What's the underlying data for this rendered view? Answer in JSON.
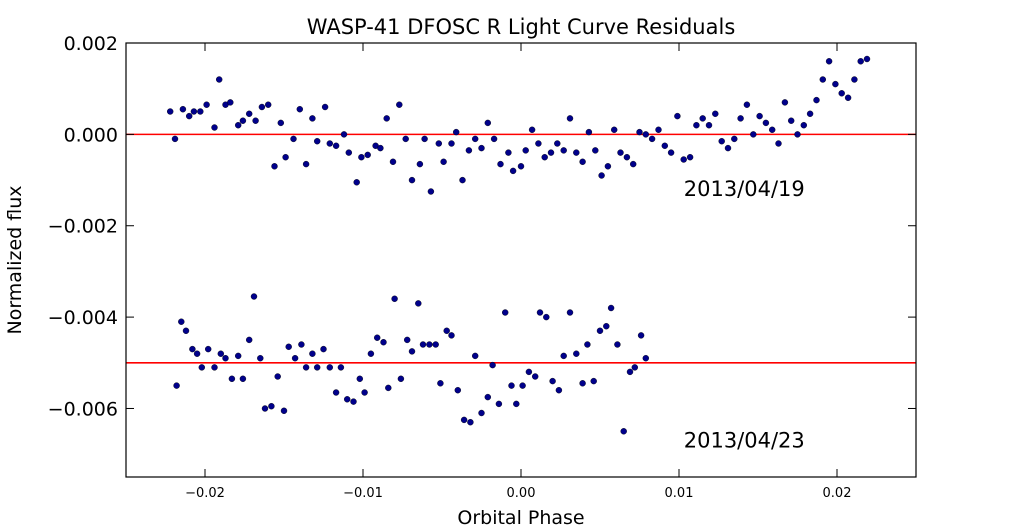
{
  "chart_data": {
    "type": "scatter",
    "title": "WASP-41 DFOSC R Light Curve Residuals",
    "xlabel": "Orbital Phase",
    "ylabel": "Normalized flux",
    "xlim": [
      -0.025,
      0.025
    ],
    "ylim": [
      -0.0075,
      0.002
    ],
    "xticks": [
      -0.02,
      -0.01,
      0.0,
      0.01,
      0.02
    ],
    "xtick_labels": [
      "−0.02",
      "−0.01",
      "0.00",
      "0.01",
      "0.02"
    ],
    "yticks": [
      0.002,
      0.0,
      -0.002,
      -0.004,
      -0.006
    ],
    "ytick_labels": [
      "0.002",
      "0.000",
      "−0.002",
      "−0.004",
      "−0.006"
    ],
    "grid": false,
    "marker_color": "#00008B",
    "line_color": "#FF0000",
    "series": [
      {
        "name": "2013/04/19",
        "label": "2013/04/19",
        "label_position": [
          0.0103,
          -0.00135
        ],
        "baseline": 0.0,
        "x": [
          -0.0222,
          -0.0219,
          -0.0214,
          -0.021,
          -0.0207,
          -0.0203,
          -0.0199,
          -0.0194,
          -0.0191,
          -0.0187,
          -0.0184,
          -0.0179,
          -0.0176,
          -0.0172,
          -0.0168,
          -0.0164,
          -0.016,
          -0.0156,
          -0.0152,
          -0.0149,
          -0.0144,
          -0.014,
          -0.0136,
          -0.0132,
          -0.0129,
          -0.0124,
          -0.0121,
          -0.0117,
          -0.0112,
          -0.0109,
          -0.0104,
          -0.0101,
          -0.0097,
          -0.0092,
          -0.0089,
          -0.0085,
          -0.0081,
          -0.0077,
          -0.0073,
          -0.0069,
          -0.0064,
          -0.0061,
          -0.0057,
          -0.0052,
          -0.0049,
          -0.0044,
          -0.0041,
          -0.0037,
          -0.0033,
          -0.0029,
          -0.0025,
          -0.0021,
          -0.0017,
          -0.0013,
          -0.0008,
          -0.0005,
          0.0,
          0.0003,
          0.0007,
          0.0011,
          0.0015,
          0.0019,
          0.0023,
          0.0027,
          0.0031,
          0.0035,
          0.0039,
          0.0043,
          0.0047,
          0.0051,
          0.0055,
          0.0059,
          0.0063,
          0.0067,
          0.0071,
          0.0075,
          0.0079,
          0.0083,
          0.0087,
          0.0091,
          0.0095,
          0.0099,
          0.0103,
          0.0107,
          0.0111,
          0.0115,
          0.0119,
          0.0123,
          0.0127,
          0.0131,
          0.0135,
          0.0139,
          0.0143,
          0.0147,
          0.0151,
          0.0155,
          0.0159,
          0.0163,
          0.0167,
          0.0171,
          0.0175,
          0.0179,
          0.0183,
          0.0187,
          0.0191,
          0.0195,
          0.0199,
          0.0203,
          0.0207,
          0.0211,
          0.0215,
          0.0219
        ],
        "y": [
          0.0005,
          -0.0001,
          0.00055,
          0.0004,
          0.0005,
          0.0005,
          0.00065,
          0.00015,
          0.0012,
          0.00065,
          0.0007,
          0.0002,
          0.0003,
          0.00045,
          0.0003,
          0.0006,
          0.00065,
          -0.0007,
          0.00025,
          -0.0005,
          -0.0001,
          0.00055,
          -0.00065,
          0.00035,
          -0.00015,
          0.0006,
          -0.0002,
          -0.00025,
          0.0,
          -0.0004,
          -0.00105,
          -0.0005,
          -0.00045,
          -0.00025,
          -0.0003,
          0.00035,
          -0.0006,
          0.00065,
          -0.0001,
          -0.001,
          -0.00065,
          -0.0001,
          -0.00125,
          -0.0002,
          -0.0006,
          -0.0002,
          5e-05,
          -0.001,
          -0.00035,
          -0.0001,
          -0.0003,
          0.00025,
          -0.0001,
          -0.00065,
          -0.0004,
          -0.0008,
          -0.0007,
          -0.00035,
          0.0001,
          -0.0002,
          -0.0005,
          -0.0004,
          -0.0002,
          -0.00035,
          0.00035,
          -0.0004,
          -0.0006,
          5e-05,
          -0.00035,
          -0.0009,
          -0.0007,
          0.0001,
          -0.0004,
          -0.0005,
          -0.00065,
          5e-05,
          0.0,
          -0.0001,
          0.0001,
          -0.00025,
          -0.0004,
          0.0004,
          -0.00055,
          -0.0005,
          0.0002,
          0.00035,
          0.0002,
          0.00045,
          -0.00015,
          -0.0003,
          -0.0001,
          0.00035,
          0.00065,
          0.0,
          0.0004,
          0.00025,
          0.0001,
          -0.0002,
          0.0007,
          0.0003,
          0.0,
          0.0002,
          0.00045,
          0.00075,
          0.0012,
          0.0016,
          0.0011,
          0.0009,
          0.0008,
          0.0012,
          0.0016,
          0.00165
        ],
        "x_used": 0
      },
      {
        "name": "2013/04/23",
        "label": "2013/04/23",
        "label_position": [
          0.0103,
          -0.00685
        ],
        "baseline": -0.005,
        "x": [
          -0.0218,
          -0.0215,
          -0.0212,
          -0.0208,
          -0.0205,
          -0.0202,
          -0.0198,
          -0.0194,
          -0.019,
          -0.0187,
          -0.0183,
          -0.0179,
          -0.0176,
          -0.0172,
          -0.0169,
          -0.0165,
          -0.0162,
          -0.0158,
          -0.0154,
          -0.015,
          -0.0147,
          -0.0143,
          -0.0139,
          -0.0136,
          -0.0132,
          -0.0129,
          -0.0125,
          -0.0121,
          -0.0117,
          -0.0114,
          -0.011,
          -0.0106,
          -0.0102,
          -0.0099,
          -0.0095,
          -0.0091,
          -0.0087,
          -0.0084,
          -0.008,
          -0.0076,
          -0.0072,
          -0.0069,
          -0.0065,
          -0.0062,
          -0.0058,
          -0.0054,
          -0.0051,
          -0.0047,
          -0.0044,
          -0.004,
          -0.0036,
          -0.0032,
          -0.0029,
          -0.0025,
          -0.0021,
          -0.0018,
          -0.0014,
          -0.001,
          -0.0006,
          -0.0003,
          0.0001,
          0.0005,
          0.0009,
          0.0012,
          0.0016,
          0.002,
          0.0024,
          0.0027,
          0.0031,
          0.0035,
          0.0039,
          0.0042,
          0.0046,
          0.005,
          0.0054,
          0.0057,
          0.0061,
          0.0065,
          0.0069,
          0.0072,
          0.0076,
          0.0079
        ],
        "y": [
          -0.0055,
          -0.0041,
          -0.0043,
          -0.0047,
          -0.0048,
          -0.0051,
          -0.0047,
          -0.0051,
          -0.0048,
          -0.0049,
          -0.00535,
          -0.00485,
          -0.00535,
          -0.0045,
          -0.00355,
          -0.0049,
          -0.006,
          -0.00595,
          -0.0053,
          -0.00605,
          -0.00465,
          -0.0049,
          -0.0046,
          -0.0051,
          -0.0048,
          -0.0051,
          -0.0047,
          -0.0051,
          -0.00565,
          -0.0051,
          -0.0058,
          -0.00585,
          -0.00535,
          -0.00565,
          -0.0048,
          -0.00445,
          -0.00455,
          -0.00555,
          -0.0036,
          -0.00535,
          -0.0045,
          -0.00475,
          -0.0037,
          -0.0046,
          -0.0046,
          -0.0046,
          -0.00545,
          -0.0043,
          -0.0044,
          -0.0056,
          -0.00625,
          -0.0063,
          -0.00485,
          -0.0061,
          -0.00575,
          -0.00505,
          -0.0059,
          -0.0039,
          -0.0055,
          -0.0059,
          -0.0055,
          -0.0052,
          -0.0053,
          -0.0039,
          -0.004,
          -0.0054,
          -0.0056,
          -0.00485,
          -0.0039,
          -0.0048,
          -0.00545,
          -0.0046,
          -0.0054,
          -0.0043,
          -0.0042,
          -0.0038,
          -0.0046,
          -0.0065,
          -0.0052,
          -0.0051,
          -0.0044,
          -0.0049
        ]
      }
    ]
  }
}
